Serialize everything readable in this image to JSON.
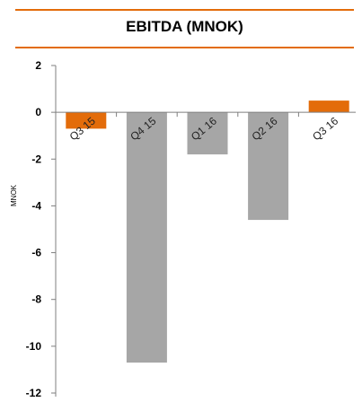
{
  "colors": {
    "accent": "#e36c0a",
    "bar_default": "#a6a6a6",
    "axis": "#7f7f7f"
  },
  "chart_data": {
    "type": "bar",
    "title": "EBITDA (MNOK)",
    "xlabel": "",
    "ylabel": "MNOK",
    "categories": [
      "Q3 15",
      "Q4 15",
      "Q1 16",
      "Q2 16",
      "Q3 16"
    ],
    "values": [
      -0.7,
      -10.7,
      -1.8,
      -4.6,
      0.5
    ],
    "bar_colors": [
      "#e36c0a",
      "#a6a6a6",
      "#a6a6a6",
      "#a6a6a6",
      "#e36c0a"
    ],
    "ylim": [
      -12,
      2
    ],
    "yticks": [
      2,
      0,
      -2,
      -4,
      -6,
      -8,
      -10,
      -12
    ],
    "grid": false,
    "legend": "none"
  }
}
